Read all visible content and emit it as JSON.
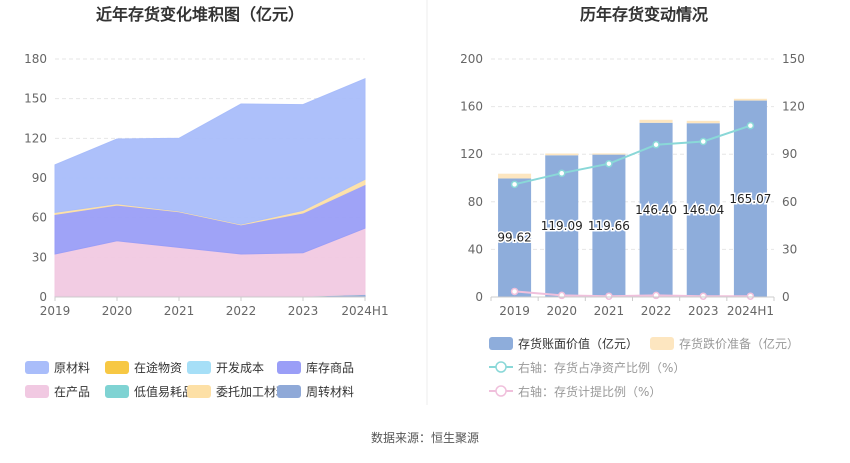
{
  "source_label": "数据来源：恒生聚源",
  "chart_data": [
    {
      "type": "area",
      "stacked": true,
      "title": "近年存货变化堆积图（亿元）",
      "categories": [
        "2019",
        "2020",
        "2021",
        "2022",
        "2023",
        "2024H1"
      ],
      "ylim": [
        0,
        180
      ],
      "yticks": [
        0,
        30,
        60,
        90,
        120,
        150,
        180
      ],
      "grid": true,
      "legend_position": "bottom",
      "series": [
        {
          "name": "周转材料",
          "color": "#8fa9d8",
          "values": [
            0.5,
            0.5,
            0.5,
            0.5,
            0.5,
            2
          ]
        },
        {
          "name": "在途物资",
          "color": "#f7c844",
          "values": [
            0,
            0,
            0,
            0,
            0,
            0
          ]
        },
        {
          "name": "低值易耗品",
          "color": "#7fd3d3",
          "values": [
            0,
            0,
            0,
            0,
            0,
            0
          ]
        },
        {
          "name": "开发成本",
          "color": "#a6dff7",
          "values": [
            0,
            0,
            0,
            0,
            0,
            0
          ]
        },
        {
          "name": "在产品",
          "color": "#f1c9e2",
          "values": [
            32,
            42,
            37,
            32,
            33,
            50
          ]
        },
        {
          "name": "库存商品",
          "color": "#9a9ef7",
          "values": [
            30,
            27,
            27,
            22,
            30,
            33
          ]
        },
        {
          "name": "委托加工材料",
          "color": "#fde0a6",
          "values": [
            1.5,
            1,
            0.5,
            0.5,
            2,
            4
          ]
        },
        {
          "name": "原材料",
          "color": "#a9bdfa",
          "values": [
            36,
            49,
            55,
            91,
            80,
            76
          ]
        }
      ],
      "legend_order": [
        "原材料",
        "在途物资",
        "开发成本",
        "库存商品",
        "在产品",
        "低值易耗品",
        "委托加工材料",
        "周转材料"
      ]
    },
    {
      "type": "bar",
      "stacked": true,
      "title": "历年存货变动情况",
      "categories": [
        "2019",
        "2020",
        "2021",
        "2022",
        "2023",
        "2024H1"
      ],
      "ylim": [
        0,
        200
      ],
      "yticks": [
        0,
        40,
        80,
        120,
        160,
        200
      ],
      "y2lim": [
        0,
        150
      ],
      "y2ticks": [
        0,
        30,
        60,
        90,
        120,
        150
      ],
      "grid": true,
      "legend_position": "bottom",
      "series": [
        {
          "name": "存货账面价值（亿元）",
          "kind": "bar",
          "color": "#8eaddb",
          "values": [
            99.62,
            119.09,
            119.66,
            146.4,
            146.04,
            165.07
          ],
          "data_labels": [
            "99.62",
            "119.09",
            "119.66",
            "146.40",
            "146.04",
            "165.07"
          ]
        },
        {
          "name": "存货跌价准备（亿元）",
          "kind": "bar",
          "color": "#fde6c0",
          "values": [
            4,
            1.5,
            1,
            2.5,
            2,
            1.5
          ]
        },
        {
          "name": "右轴：存货占净资产比例（%）",
          "kind": "line",
          "axis": "right",
          "color": "#8ad8d8",
          "values": [
            71,
            78,
            84,
            96,
            98,
            108
          ]
        },
        {
          "name": "右轴：存货计提比例（%）",
          "kind": "line",
          "axis": "right",
          "color": "#f0c0dc",
          "values": [
            3.5,
            1,
            0.5,
            1,
            0.5,
            0.5
          ]
        }
      ]
    }
  ]
}
